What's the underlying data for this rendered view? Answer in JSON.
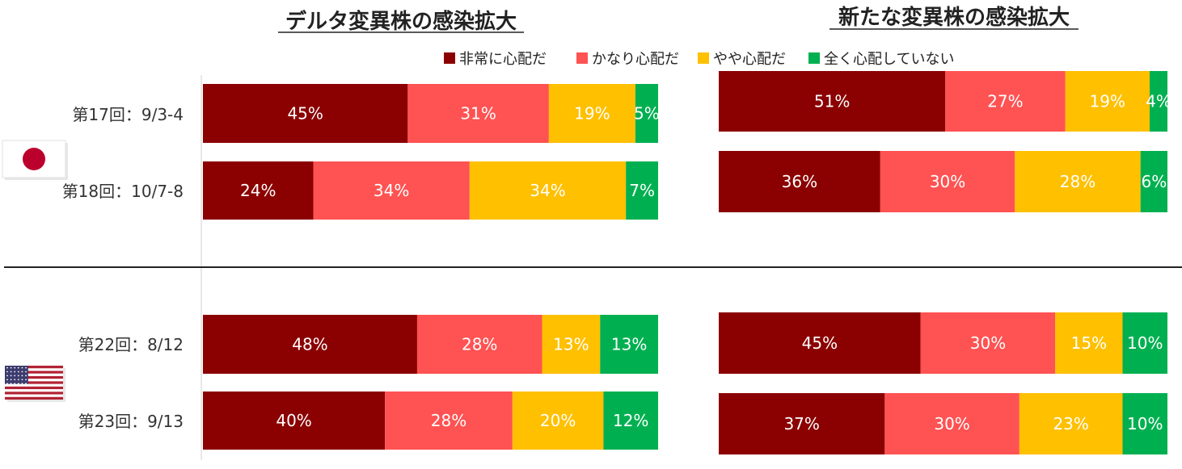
{
  "legend": [
    "非常に心配だ",
    "かなり心配だ",
    "やや心配だ",
    "全く心配していない"
  ],
  "colors": [
    "#8b0000",
    "#ff5252",
    "#ffc000",
    "#00b050"
  ],
  "flags": [
    "japan-flag-icon",
    "usa-flag-icon"
  ],
  "chart_data": [
    {
      "type": "bar",
      "title": "デルタ変異株の感染拡大",
      "stacked": true,
      "orientation": "horizontal",
      "categories": [
        "第17回：9/3-4",
        "第18回：10/7-8",
        "第22回：8/12",
        "第23回：9/13"
      ],
      "series": [
        {
          "name": "非常に心配だ",
          "values": [
            45,
            24,
            48,
            40
          ]
        },
        {
          "name": "かなり心配だ",
          "values": [
            31,
            34,
            28,
            28
          ]
        },
        {
          "name": "やや心配だ",
          "values": [
            19,
            34,
            13,
            20
          ]
        },
        {
          "name": "全く心配していない",
          "values": [
            5,
            7,
            13,
            12
          ]
        }
      ],
      "data_labels": [
        [
          "45%",
          "31%",
          "19%",
          "5%"
        ],
        [
          "24%",
          "34%",
          "34%",
          "7%"
        ],
        [
          "48%",
          "28%",
          "13%",
          "13%"
        ],
        [
          "40%",
          "28%",
          "20%",
          "12%"
        ]
      ]
    },
    {
      "type": "bar",
      "title": "新たな変異株の感染拡大",
      "stacked": true,
      "orientation": "horizontal",
      "categories": [
        "第17回：9/3-4",
        "第18回：10/7-8",
        "第22回：8/12",
        "第23回：9/13"
      ],
      "series": [
        {
          "name": "非常に心配だ",
          "values": [
            51,
            36,
            45,
            37
          ]
        },
        {
          "name": "かなり心配だ",
          "values": [
            27,
            30,
            30,
            30
          ]
        },
        {
          "name": "やや心配だ",
          "values": [
            19,
            28,
            15,
            23
          ]
        },
        {
          "name": "全く心配していない",
          "values": [
            4,
            6,
            10,
            10
          ]
        }
      ],
      "data_labels": [
        [
          "51%",
          "27%",
          "19%",
          "4%"
        ],
        [
          "36%",
          "30%",
          "28%",
          "6%"
        ],
        [
          "45%",
          "30%",
          "15%",
          "10%"
        ],
        [
          "37%",
          "30%",
          "23%",
          "10%"
        ]
      ]
    }
  ]
}
